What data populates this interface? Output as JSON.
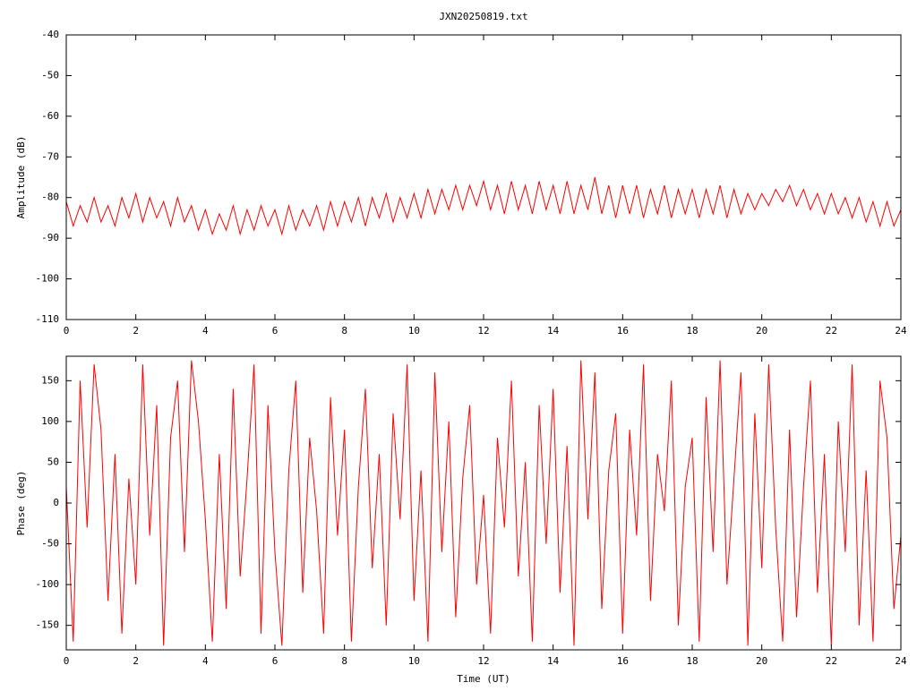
{
  "chart_data": [
    {
      "type": "line",
      "title": "JXN20250819.txt",
      "ylabel": "Amplitude (dB)",
      "x": [
        0,
        0.2,
        0.4,
        0.6,
        0.8,
        1,
        1.2,
        1.4,
        1.6,
        1.8,
        2,
        2.2,
        2.4,
        2.6,
        2.8,
        3,
        3.2,
        3.4,
        3.6,
        3.8,
        4,
        4.2,
        4.4,
        4.6,
        4.8,
        5,
        5.2,
        5.4,
        5.6,
        5.8,
        6,
        6.2,
        6.4,
        6.6,
        6.8,
        7,
        7.2,
        7.4,
        7.6,
        7.8,
        8,
        8.2,
        8.4,
        8.6,
        8.8,
        9,
        9.2,
        9.4,
        9.6,
        9.8,
        10,
        10.2,
        10.4,
        10.6,
        10.8,
        11,
        11.2,
        11.4,
        11.6,
        11.8,
        12,
        12.2,
        12.4,
        12.6,
        12.8,
        13,
        13.2,
        13.4,
        13.6,
        13.8,
        14,
        14.2,
        14.4,
        14.6,
        14.8,
        15,
        15.2,
        15.4,
        15.6,
        15.8,
        16,
        16.2,
        16.4,
        16.6,
        16.8,
        17,
        17.2,
        17.4,
        17.6,
        17.8,
        18,
        18.2,
        18.4,
        18.6,
        18.8,
        19,
        19.2,
        19.4,
        19.6,
        19.8,
        20,
        20.2,
        20.4,
        20.6,
        20.8,
        21,
        21.2,
        21.4,
        21.6,
        21.8,
        22,
        22.2,
        22.4,
        22.6,
        22.8,
        23,
        23.2,
        23.4,
        23.6,
        23.8,
        24
      ],
      "series": [
        {
          "color": "#ff0000",
          "values": [
            -81,
            -87,
            -82,
            -86,
            -80,
            -86,
            -82,
            -87,
            -80,
            -85,
            -79,
            -86,
            -80,
            -85,
            -81,
            -87,
            -80,
            -86,
            -82,
            -88,
            -83,
            -89,
            -84,
            -88,
            -82,
            -89,
            -83,
            -88,
            -82,
            -87,
            -83,
            -89,
            -82,
            -88,
            -83,
            -87,
            -82,
            -88,
            -81,
            -87,
            -81,
            -86,
            -80,
            -87,
            -80,
            -85,
            -79,
            -86,
            -80,
            -85,
            -79,
            -85,
            -78,
            -84,
            -78,
            -83,
            -77,
            -83,
            -77,
            -82,
            -76,
            -83,
            -77,
            -84,
            -76,
            -83,
            -77,
            -84,
            -76,
            -83,
            -77,
            -84,
            -76,
            -84,
            -77,
            -83,
            -75,
            -84,
            -77,
            -85,
            -77,
            -84,
            -77,
            -85,
            -78,
            -84,
            -77,
            -85,
            -78,
            -84,
            -78,
            -85,
            -78,
            -84,
            -77,
            -85,
            -78,
            -84,
            -79,
            -83,
            -79,
            -82,
            -78,
            -81,
            -77,
            -82,
            -78,
            -83,
            -79,
            -84,
            -79,
            -84,
            -80,
            -85,
            -80,
            -86,
            -81,
            -87,
            -81,
            -87,
            -83
          ]
        }
      ],
      "xlim": [
        0,
        24
      ],
      "ylim": [
        -110,
        -40
      ],
      "xticks": [
        0,
        2,
        4,
        6,
        8,
        10,
        12,
        14,
        16,
        18,
        20,
        22,
        24
      ],
      "yticks": [
        -40,
        -50,
        -60,
        -70,
        -80,
        -90,
        -100,
        -110
      ]
    },
    {
      "type": "line",
      "ylabel": "Phase (deg)",
      "xlabel": "Time (UT)",
      "x": [
        0,
        0.2,
        0.4,
        0.6,
        0.8,
        1,
        1.2,
        1.4,
        1.6,
        1.8,
        2,
        2.2,
        2.4,
        2.6,
        2.8,
        3,
        3.2,
        3.4,
        3.6,
        3.8,
        4,
        4.2,
        4.4,
        4.6,
        4.8,
        5,
        5.2,
        5.4,
        5.6,
        5.8,
        6,
        6.2,
        6.4,
        6.6,
        6.8,
        7,
        7.2,
        7.4,
        7.6,
        7.8,
        8,
        8.2,
        8.4,
        8.6,
        8.8,
        9,
        9.2,
        9.4,
        9.6,
        9.8,
        10,
        10.2,
        10.4,
        10.6,
        10.8,
        11,
        11.2,
        11.4,
        11.6,
        11.8,
        12,
        12.2,
        12.4,
        12.6,
        12.8,
        13,
        13.2,
        13.4,
        13.6,
        13.8,
        14,
        14.2,
        14.4,
        14.6,
        14.8,
        15,
        15.2,
        15.4,
        15.6,
        15.8,
        16,
        16.2,
        16.4,
        16.6,
        16.8,
        17,
        17.2,
        17.4,
        17.6,
        17.8,
        18,
        18.2,
        18.4,
        18.6,
        18.8,
        19,
        19.2,
        19.4,
        19.6,
        19.8,
        20,
        20.2,
        20.4,
        20.6,
        20.8,
        21,
        21.2,
        21.4,
        21.6,
        21.8,
        22,
        22.2,
        22.4,
        22.6,
        22.8,
        23,
        23.2,
        23.4,
        23.6,
        23.8,
        24
      ],
      "series": [
        {
          "color": "#ff0000",
          "values": [
            20,
            -170,
            150,
            -30,
            170,
            90,
            -120,
            60,
            -160,
            30,
            -100,
            170,
            -40,
            120,
            -175,
            80,
            150,
            -60,
            175,
            100,
            -20,
            -170,
            60,
            -130,
            140,
            -90,
            30,
            170,
            -160,
            120,
            -60,
            -175,
            40,
            150,
            -110,
            80,
            -10,
            -160,
            130,
            -40,
            90,
            -170,
            20,
            140,
            -80,
            60,
            -150,
            110,
            -20,
            170,
            -120,
            40,
            -170,
            160,
            -60,
            100,
            -140,
            30,
            120,
            -100,
            10,
            -160,
            80,
            -30,
            150,
            -90,
            50,
            -170,
            120,
            -50,
            140,
            -110,
            70,
            -175,
            175,
            -20,
            160,
            -130,
            40,
            110,
            -160,
            90,
            -40,
            170,
            -120,
            60,
            -10,
            150,
            -150,
            20,
            80,
            -170,
            130,
            -60,
            175,
            -100,
            30,
            160,
            -175,
            110,
            -80,
            170,
            -30,
            -170,
            90,
            -140,
            20,
            150,
            -110,
            60,
            -175,
            100,
            -60,
            170,
            -150,
            40,
            -170,
            150,
            80,
            -130,
            -40
          ]
        }
      ],
      "xlim": [
        0,
        24
      ],
      "ylim": [
        -180,
        180
      ],
      "xticks": [
        0,
        2,
        4,
        6,
        8,
        10,
        12,
        14,
        16,
        18,
        20,
        22,
        24
      ],
      "yticks": [
        -150,
        -100,
        -50,
        0,
        50,
        100,
        150
      ]
    }
  ]
}
